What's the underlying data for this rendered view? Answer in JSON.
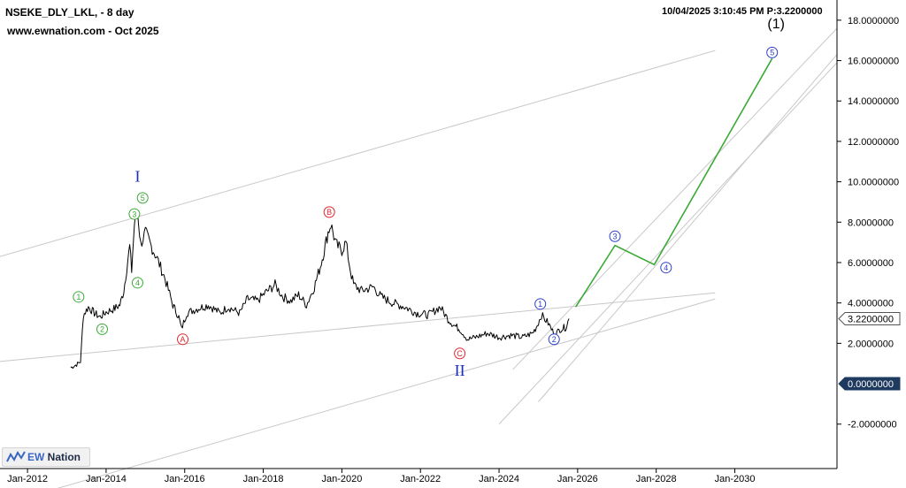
{
  "header": {
    "symbol_line": "NSEKE_DLY_LKL, - 8 day",
    "site_line": "www.ewnation.com  - Oct 2025",
    "timestamp_line": "10/04/2025 3:10:45 PM  P:3.2200000"
  },
  "logo": {
    "prefix": "EW",
    "suffix": " Nation"
  },
  "colors": {
    "price": "#000000",
    "channel": "#c8c8c8",
    "projection": "#3aaa35",
    "wave_green": "#3aaa35",
    "wave_red": "#e0262c",
    "wave_blue": "#2b3fc8",
    "roman_blue": "#1a2fb8",
    "axis": "#000000",
    "last_price_box": "#ffffff",
    "zero_box": "#1e3a5f"
  },
  "chart_data": {
    "type": "line",
    "title": "NSEKE_DLY_LKL",
    "xlabel": "",
    "ylabel": "",
    "xlim": [
      2011.3,
      2032.6
    ],
    "ylim": [
      -4.2,
      19.0
    ],
    "x_ticks": [
      {
        "label": "Jan-2012",
        "x": 2012.0
      },
      {
        "label": "Jan-2014",
        "x": 2014.0
      },
      {
        "label": "Jan-2016",
        "x": 2016.0
      },
      {
        "label": "Jan-2018",
        "x": 2018.0
      },
      {
        "label": "Jan-2020",
        "x": 2020.0
      },
      {
        "label": "Jan-2022",
        "x": 2022.0
      },
      {
        "label": "Jan-2024",
        "x": 2024.0
      },
      {
        "label": "Jan-2026",
        "x": 2026.0
      },
      {
        "label": "Jan-2028",
        "x": 2028.0
      },
      {
        "label": "Jan-2030",
        "x": 2030.0
      }
    ],
    "y_ticks": [
      {
        "label": "18.0000000",
        "y": 18
      },
      {
        "label": "16.0000000",
        "y": 16
      },
      {
        "label": "14.0000000",
        "y": 14
      },
      {
        "label": "12.0000000",
        "y": 12
      },
      {
        "label": "10.0000000",
        "y": 10
      },
      {
        "label": "8.0000000",
        "y": 8
      },
      {
        "label": "6.0000000",
        "y": 6
      },
      {
        "label": "4.0000000",
        "y": 4
      },
      {
        "label": "2.0000000",
        "y": 2
      },
      {
        "label": "-2.0000000",
        "y": -2
      }
    ],
    "last_price": {
      "label": "3.2200000",
      "y": 3.22
    },
    "zero_line": {
      "label": "0.0000000",
      "y": 0
    },
    "series": [
      {
        "values": [
          [
            2013.1,
            0.8
          ],
          [
            2013.25,
            0.95
          ],
          [
            2013.35,
            1.1
          ],
          [
            2013.42,
            3.4
          ],
          [
            2013.55,
            3.8
          ],
          [
            2013.7,
            3.5
          ],
          [
            2013.85,
            3.3
          ],
          [
            2014.0,
            3.55
          ],
          [
            2014.2,
            3.7
          ],
          [
            2014.35,
            3.9
          ],
          [
            2014.45,
            4.6
          ],
          [
            2014.6,
            6.8
          ],
          [
            2014.65,
            5.6
          ],
          [
            2014.72,
            7.9
          ],
          [
            2014.8,
            8.6
          ],
          [
            2014.88,
            6.9
          ],
          [
            2015.0,
            7.5
          ],
          [
            2015.15,
            6.8
          ],
          [
            2015.3,
            6.2
          ],
          [
            2015.5,
            5.2
          ],
          [
            2015.7,
            3.9
          ],
          [
            2015.85,
            3.3
          ],
          [
            2015.92,
            2.7
          ],
          [
            2016.05,
            3.5
          ],
          [
            2016.3,
            3.7
          ],
          [
            2016.6,
            3.9
          ],
          [
            2016.9,
            3.5
          ],
          [
            2017.1,
            3.8
          ],
          [
            2017.4,
            3.5
          ],
          [
            2017.6,
            4.2
          ],
          [
            2017.85,
            4.1
          ],
          [
            2018.05,
            4.5
          ],
          [
            2018.3,
            4.9
          ],
          [
            2018.5,
            4.3
          ],
          [
            2018.7,
            4.1
          ],
          [
            2018.9,
            4.4
          ],
          [
            2019.1,
            3.9
          ],
          [
            2019.3,
            4.8
          ],
          [
            2019.45,
            5.8
          ],
          [
            2019.55,
            6.6
          ],
          [
            2019.65,
            7.5
          ],
          [
            2019.72,
            7.9
          ],
          [
            2019.85,
            6.9
          ],
          [
            2020.0,
            6.6
          ],
          [
            2020.1,
            7.0
          ],
          [
            2020.22,
            5.6
          ],
          [
            2020.3,
            4.9
          ],
          [
            2020.5,
            4.6
          ],
          [
            2020.8,
            4.8
          ],
          [
            2021.0,
            4.3
          ],
          [
            2021.3,
            4.0
          ],
          [
            2021.6,
            3.8
          ],
          [
            2021.9,
            3.5
          ],
          [
            2022.2,
            3.4
          ],
          [
            2022.5,
            3.8
          ],
          [
            2022.7,
            3.2
          ],
          [
            2022.85,
            2.9
          ],
          [
            2023.0,
            2.7
          ],
          [
            2023.2,
            2.2
          ],
          [
            2023.4,
            2.3
          ],
          [
            2023.7,
            2.5
          ],
          [
            2024.0,
            2.3
          ],
          [
            2024.3,
            2.4
          ],
          [
            2024.6,
            2.3
          ],
          [
            2024.85,
            2.5
          ],
          [
            2024.95,
            2.8
          ],
          [
            2025.08,
            3.4
          ],
          [
            2025.25,
            3.0
          ],
          [
            2025.42,
            2.4
          ],
          [
            2025.55,
            2.7
          ],
          [
            2025.7,
            2.8
          ],
          [
            2025.78,
            3.22
          ]
        ]
      },
      {
        "values": [
          [
            2025.95,
            3.8
          ],
          [
            2026.95,
            6.85
          ],
          [
            2027.95,
            5.9
          ],
          [
            2030.95,
            16.1
          ]
        ]
      }
    ],
    "channels": [
      {
        "from": [
          2011.3,
          6.3
        ],
        "to": [
          2029.5,
          16.5
        ]
      },
      {
        "from": [
          2011.3,
          1.1
        ],
        "to": [
          2029.5,
          4.5
        ]
      },
      {
        "from": [
          2011.3,
          -6.0
        ],
        "to": [
          2029.5,
          4.2
        ]
      },
      {
        "from": [
          2024.35,
          0.7
        ],
        "to": [
          2032.6,
          17.6
        ]
      },
      {
        "from": [
          2024.0,
          -2.0
        ],
        "to": [
          2032.6,
          15.9
        ]
      },
      {
        "from": [
          2025.0,
          -0.9
        ],
        "to": [
          2032.6,
          16.3
        ]
      }
    ],
    "wave_labels": [
      {
        "text": "1",
        "color_key": "wave_green",
        "x": 2013.3,
        "y": 4.3
      },
      {
        "text": "2",
        "color_key": "wave_green",
        "x": 2013.9,
        "y": 2.7
      },
      {
        "text": "3",
        "color_key": "wave_green",
        "x": 2014.72,
        "y": 8.4
      },
      {
        "text": "4",
        "color_key": "wave_green",
        "x": 2014.8,
        "y": 5.0
      },
      {
        "text": "5",
        "color_key": "wave_green",
        "x": 2014.93,
        "y": 9.2
      },
      {
        "text": "A",
        "color_key": "wave_red",
        "x": 2015.95,
        "y": 2.2
      },
      {
        "text": "B",
        "color_key": "wave_red",
        "x": 2019.68,
        "y": 8.5
      },
      {
        "text": "C",
        "color_key": "wave_red",
        "x": 2023.0,
        "y": 1.5
      },
      {
        "text": "1",
        "color_key": "wave_blue",
        "x": 2025.05,
        "y": 3.95
      },
      {
        "text": "2",
        "color_key": "wave_blue",
        "x": 2025.4,
        "y": 2.2
      },
      {
        "text": "3",
        "color_key": "wave_blue",
        "x": 2026.95,
        "y": 7.3
      },
      {
        "text": "4",
        "color_key": "wave_blue",
        "x": 2028.25,
        "y": 5.75
      },
      {
        "text": "5",
        "color_key": "wave_blue",
        "x": 2030.95,
        "y": 16.4
      }
    ],
    "degree_labels": [
      {
        "text": "I",
        "color_key": "roman_blue",
        "x": 2014.8,
        "y": 10.0
      },
      {
        "text": "II",
        "color_key": "roman_blue",
        "x": 2023.0,
        "y": 0.4
      },
      {
        "text": "(1)",
        "color_key": "axis",
        "x": 2031.05,
        "y": 17.6
      }
    ]
  }
}
